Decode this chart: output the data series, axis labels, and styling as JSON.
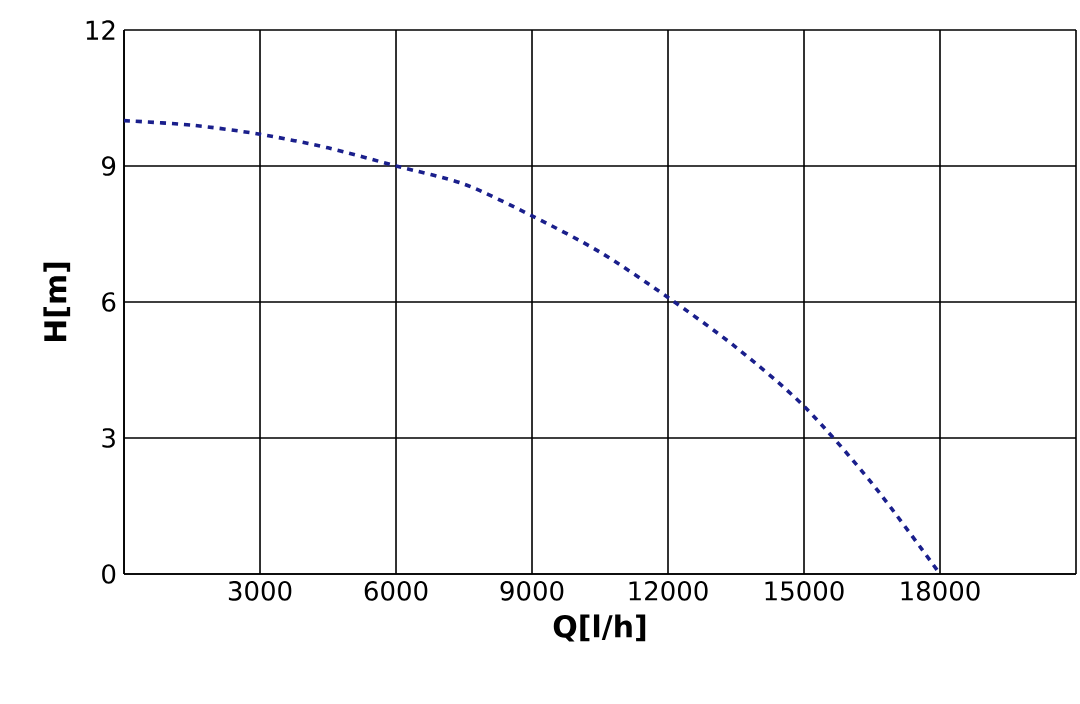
{
  "chart_data": {
    "type": "line",
    "xlabel": "Q[l/h]",
    "ylabel": "H[m]",
    "x": [
      0,
      1500,
      3000,
      4500,
      6000,
      7500,
      9000,
      10500,
      12000,
      13500,
      15000,
      16500,
      18000
    ],
    "series": [
      {
        "color": "#1a1f8c",
        "values": [
          10.0,
          9.9,
          9.7,
          9.4,
          9.0,
          8.6,
          7.9,
          7.1,
          6.1,
          5.0,
          3.7,
          2.0,
          0
        ]
      }
    ],
    "xlim": [
      0,
      21000
    ],
    "ylim": [
      0,
      12
    ],
    "xticks": [
      {
        "value": 0,
        "label": null
      },
      3000,
      6000,
      9000,
      12000,
      15000,
      18000,
      {
        "value": 21000,
        "label": null
      }
    ],
    "yticks": [
      0,
      3,
      6,
      9,
      12
    ],
    "grid": true,
    "line_style": "dashed",
    "marker": "none"
  }
}
